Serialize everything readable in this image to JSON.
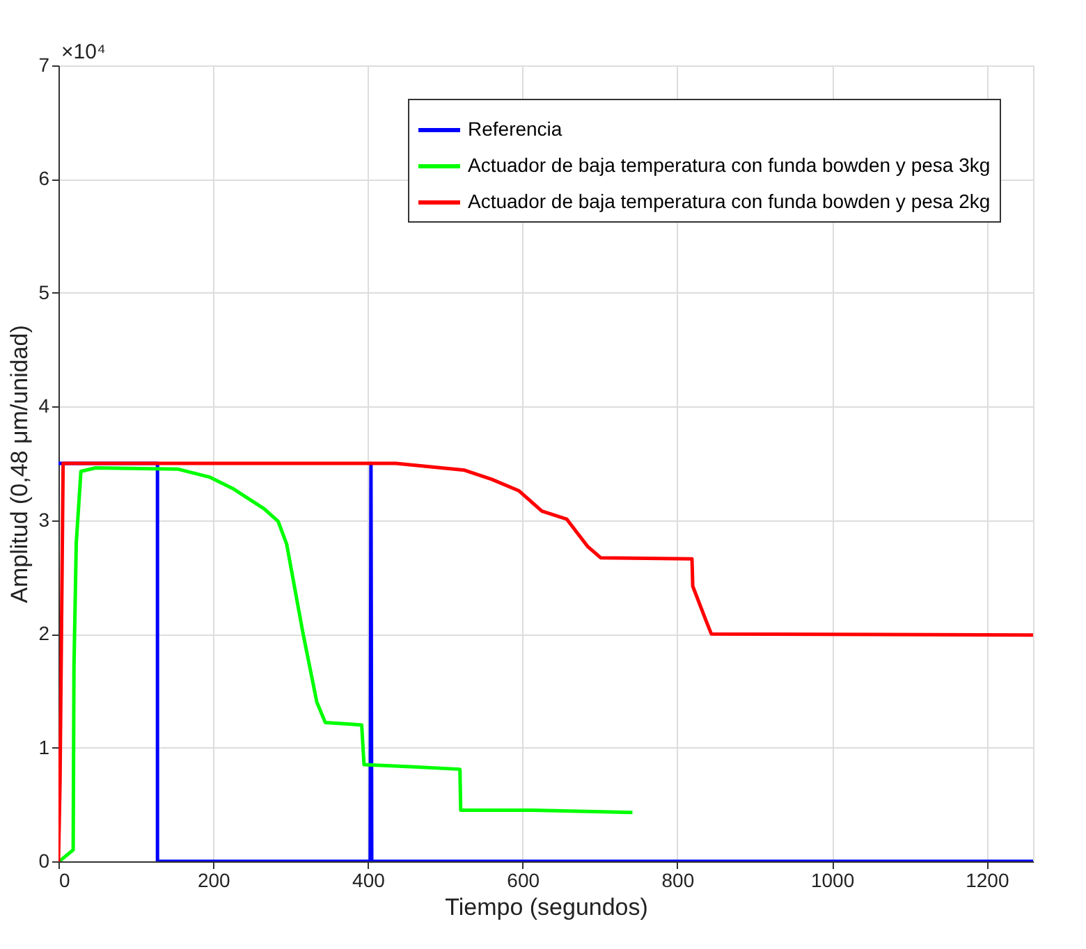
{
  "chart_data": {
    "type": "line",
    "xlabel": "Tiempo (segundos)",
    "ylabel": "Amplitud (0,48 μm/unidad)",
    "annotations": [
      "×10⁴"
    ],
    "xlim": [
      0,
      1260
    ],
    "xticks": [
      0,
      200,
      400,
      600,
      800,
      1000,
      1200
    ],
    "ylim": [
      0,
      7
    ],
    "yticks": [
      0,
      1,
      2,
      3,
      4,
      5,
      6,
      7
    ],
    "grid": true,
    "legend": "top right",
    "line_style": "solid",
    "series": [
      {
        "name": "Referencia",
        "color": "#0000ff",
        "x": [
          0,
          128,
          128,
          403,
          404,
          405,
          1260
        ],
        "values": [
          3.5,
          3.5,
          0,
          0,
          3.5,
          0,
          0
        ]
      },
      {
        "name": "Actuador de baja temperatura con funda bowden y pesa 3kg",
        "color": "#00ff00",
        "x": [
          1,
          19,
          20,
          23,
          29,
          48,
          154,
          195,
          225,
          266,
          284,
          295,
          316,
          334,
          345,
          392,
          395,
          460,
          519,
          520,
          613,
          742
        ],
        "values": [
          0,
          0.1,
          1.7,
          2.8,
          3.43,
          3.46,
          3.45,
          3.38,
          3.28,
          3.1,
          2.99,
          2.79,
          2.01,
          1.4,
          1.22,
          1.2,
          0.85,
          0.83,
          0.81,
          0.45,
          0.45,
          0.43
        ]
      },
      {
        "name": "Actuador de baja temperatura con funda bowden y pesa 2kg",
        "color": "#ff0000",
        "x": [
          0,
          2,
          4,
          6,
          436,
          525,
          560,
          595,
          625,
          657,
          684,
          701,
          819,
          820,
          837,
          844,
          1260
        ],
        "values": [
          0,
          0.7,
          2.1,
          3.5,
          3.5,
          3.44,
          3.36,
          3.26,
          3.08,
          3.01,
          2.77,
          2.67,
          2.66,
          2.42,
          2.12,
          2.0,
          1.99
        ]
      }
    ]
  }
}
